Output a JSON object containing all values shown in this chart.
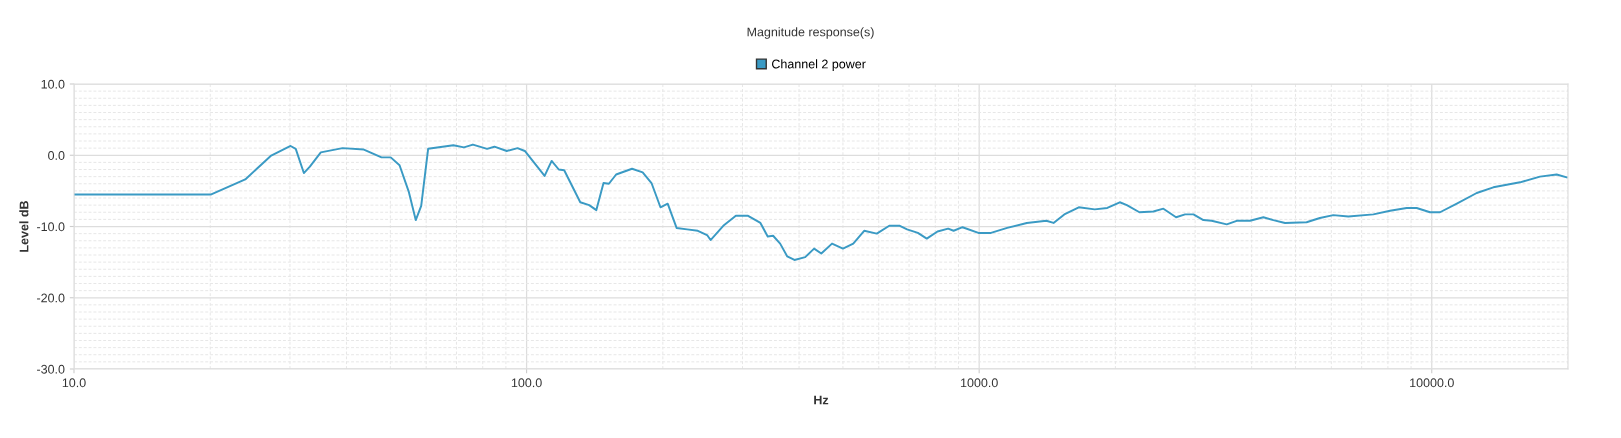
{
  "chart_data": {
    "type": "line",
    "title": "Magnitude response(s)",
    "xlabel": "Hz",
    "ylabel": "Level dB",
    "log": "x",
    "grid": true,
    "legend": "top",
    "marker": "none",
    "line_style": "solid",
    "xlim": [
      10,
      20000
    ],
    "xticks": [
      {
        "value": 10,
        "label": "10.0"
      },
      {
        "value": 100,
        "label": "100.0"
      },
      {
        "value": 1000,
        "label": "1000.0"
      },
      {
        "value": 10000,
        "label": "10000.0"
      }
    ],
    "ylim": [
      -30,
      10
    ],
    "yticks": [
      {
        "value": -30,
        "label": "-30.0"
      },
      {
        "value": -20,
        "label": "-20.0"
      },
      {
        "value": -10,
        "label": "-10.0"
      },
      {
        "value": 0,
        "label": "0.0"
      },
      {
        "value": 10,
        "label": "10.0"
      }
    ],
    "series": [
      {
        "name": "Channel 2 power",
        "color": "#3a9ac4",
        "x": [
          10,
          20.1,
          23.9,
          27.2,
          30.1,
          30.9,
          32.2,
          33.2,
          35.1,
          39.2,
          43.7,
          47.8,
          50.1,
          52.4,
          54.9,
          56.9,
          58.5,
          60.6,
          68.9,
          72.7,
          76.1,
          81.8,
          84.9,
          90.4,
          95.5,
          99.1,
          109.6,
          113.6,
          117.8,
          121.1,
          131.4,
          137.5,
          142.6,
          147.9,
          152,
          157.7,
          171,
          180.5,
          188.8,
          197.6,
          205,
          214.5,
          226.3,
          239,
          250.5,
          255,
          272,
          290,
          308.6,
          328.6,
          341,
          350.5,
          363.3,
          376.7,
          390.7,
          412.7,
          431.8,
          447.9,
          473,
          500,
          527,
          557,
          594,
          633,
          668,
          693,
          732,
          766,
          809,
          854,
          878,
          919,
          996,
          1062,
          1153,
          1274,
          1407,
          1460,
          1542,
          1660,
          1800,
          1919,
          2045,
          2120,
          2260,
          2426,
          2553,
          2723,
          2851,
          2975,
          3129,
          3263,
          3524,
          3707,
          3966,
          4246,
          4467,
          4740,
          5289,
          5660,
          6059,
          6542,
          7430,
          8090,
          8800,
          9262,
          9912,
          10430,
          11360,
          12570,
          13680,
          15670,
          17340,
          18880,
          19870
        ],
        "values": [
          -5.5,
          -5.5,
          -3.4,
          -0.1,
          1.3,
          0.9,
          -2.5,
          -1.6,
          0.4,
          1.0,
          0.8,
          -0.3,
          -0.3,
          -1.4,
          -5.1,
          -9.1,
          -7.1,
          0.9,
          1.4,
          1.1,
          1.5,
          0.9,
          1.2,
          0.6,
          1.0,
          0.6,
          -2.9,
          -0.8,
          -2.0,
          -2.1,
          -6.6,
          -7.0,
          -7.7,
          -3.9,
          -4.0,
          -2.7,
          -1.9,
          -2.4,
          -3.9,
          -7.3,
          -6.8,
          -10.2,
          -10.4,
          -10.6,
          -11.2,
          -11.9,
          -9.9,
          -8.5,
          -8.5,
          -9.5,
          -11.4,
          -11.3,
          -12.4,
          -14.2,
          -14.7,
          -14.3,
          -13.1,
          -13.8,
          -12.4,
          -13.1,
          -12.4,
          -10.6,
          -11.0,
          -9.9,
          -9.9,
          -10.4,
          -10.9,
          -11.7,
          -10.7,
          -10.3,
          -10.6,
          -10.1,
          -10.9,
          -10.9,
          -10.2,
          -9.5,
          -9.2,
          -9.5,
          -8.3,
          -7.3,
          -7.6,
          -7.4,
          -6.6,
          -7.0,
          -8.0,
          -7.9,
          -7.5,
          -8.7,
          -8.3,
          -8.3,
          -9.1,
          -9.2,
          -9.7,
          -9.2,
          -9.2,
          -8.7,
          -9.1,
          -9.5,
          -9.4,
          -8.8,
          -8.4,
          -8.6,
          -8.3,
          -7.8,
          -7.4,
          -7.4,
          -8.0,
          -8.0,
          -6.8,
          -5.3,
          -4.5,
          -3.8,
          -3.0,
          -2.7,
          -3.1
        ]
      }
    ]
  }
}
